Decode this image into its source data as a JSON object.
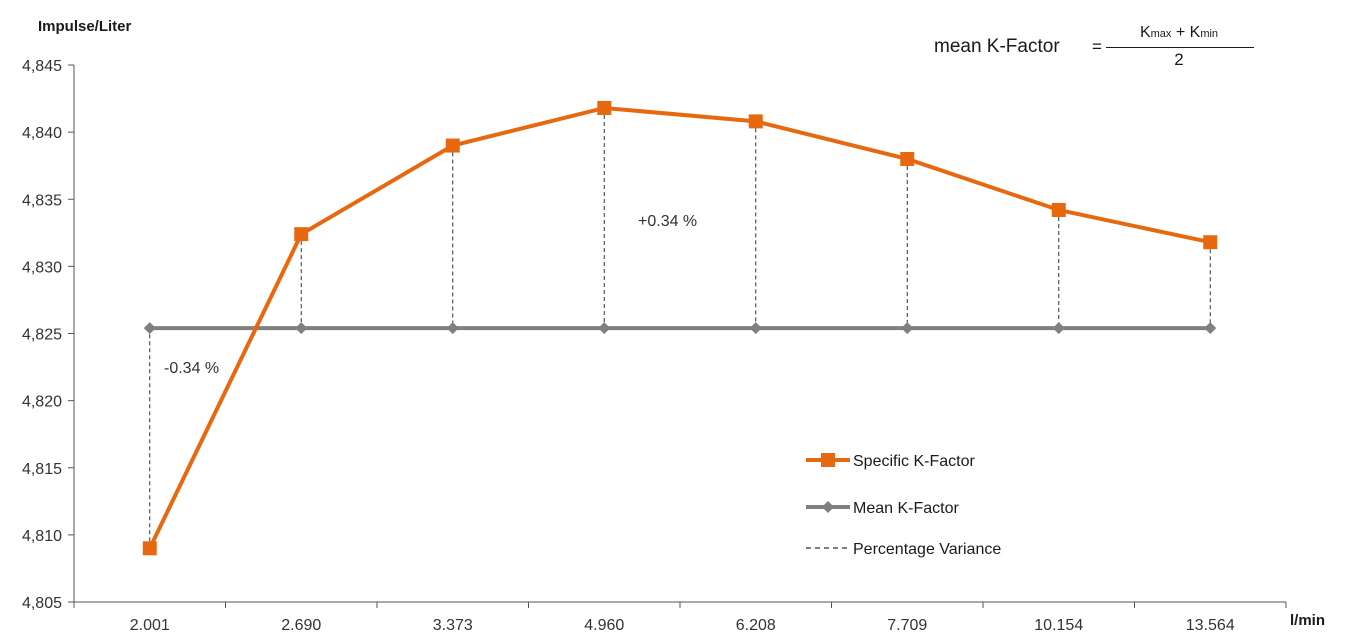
{
  "chart_data": {
    "type": "line",
    "title": "",
    "ylabel": "Impulse/Liter",
    "xlabel": "l/min",
    "categories": [
      "2.001",
      "2.690",
      "3.373",
      "4.960",
      "6.208",
      "7.709",
      "10.154",
      "13.564"
    ],
    "yticks": [
      "4,805",
      "4,810",
      "4,815",
      "4,820",
      "4,825",
      "4,830",
      "4,835",
      "4,840",
      "4,845"
    ],
    "ylim": [
      4.805,
      4.845
    ],
    "grid": false,
    "legend_position": "bottom-right",
    "series": [
      {
        "name": "Specific K-Factor",
        "color": "#e8680f",
        "marker": "square",
        "values": [
          4.809,
          4.8324,
          4.839,
          4.8418,
          4.8408,
          4.838,
          4.8342,
          4.8318
        ]
      },
      {
        "name": "Mean K-Factor",
        "color": "#808080",
        "marker": "diamond",
        "values": [
          4.8254,
          4.8254,
          4.8254,
          4.8254,
          4.8254,
          4.8254,
          4.8254,
          4.8254
        ]
      }
    ],
    "variance_legend": "Percentage Variance",
    "annotations": [
      "+0.34 %",
      "-0.34 %"
    ],
    "formula": {
      "lhs": "mean K-Factor",
      "eq": "=",
      "k": "K",
      "max": "max",
      "plus": " + ",
      "min": "min",
      "den": "2"
    }
  }
}
